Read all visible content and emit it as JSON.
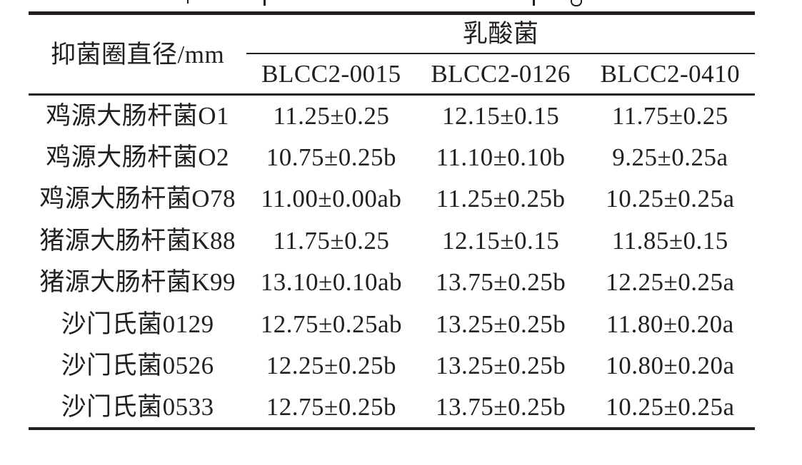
{
  "chart_data": {
    "type": "table",
    "title": "",
    "row_header_label": "抑菌圈直径/mm",
    "group_header": "乳酸菌",
    "columns": [
      "BLCC2-0015",
      "BLCC2-0126",
      "BLCC2-0410"
    ],
    "rows": [
      {
        "label": "鸡源大肠杆菌O1",
        "values": [
          "11.25±0.25",
          "12.15±0.15",
          "11.75±0.25"
        ]
      },
      {
        "label": "鸡源大肠杆菌O2",
        "values": [
          "10.75±0.25b",
          "11.10±0.10b",
          "9.25±0.25a"
        ]
      },
      {
        "label": "鸡源大肠杆菌O78",
        "values": [
          "11.00±0.00ab",
          "11.25±0.25b",
          "10.25±0.25a"
        ]
      },
      {
        "label": "猪源大肠杆菌K88",
        "values": [
          "11.75±0.25",
          "12.15±0.15",
          "11.85±0.15"
        ]
      },
      {
        "label": "猪源大肠杆菌K99",
        "values": [
          "13.10±0.10ab",
          "13.75±0.25b",
          "12.25±0.25a"
        ]
      },
      {
        "label": "沙门氏菌0129",
        "values": [
          "12.75±0.25ab",
          "13.25±0.25b",
          "11.80±0.20a"
        ]
      },
      {
        "label": "沙门氏菌0526",
        "values": [
          "12.25±0.25b",
          "13.25±0.25b",
          "10.80±0.20a"
        ]
      },
      {
        "label": "沙门氏菌0533",
        "values": [
          "12.75±0.25b",
          "13.75±0.25b",
          "10.25±0.25a"
        ]
      }
    ],
    "ink_color": "#231f20",
    "background_color": "#ffffff",
    "layout": {
      "grid": "book-style rules only: thick top rule, thin rule under group header spanning data columns, medium rule under column headers, thick bottom rule",
      "value_format": "mean±SD with significance letters a/b/ab"
    }
  }
}
